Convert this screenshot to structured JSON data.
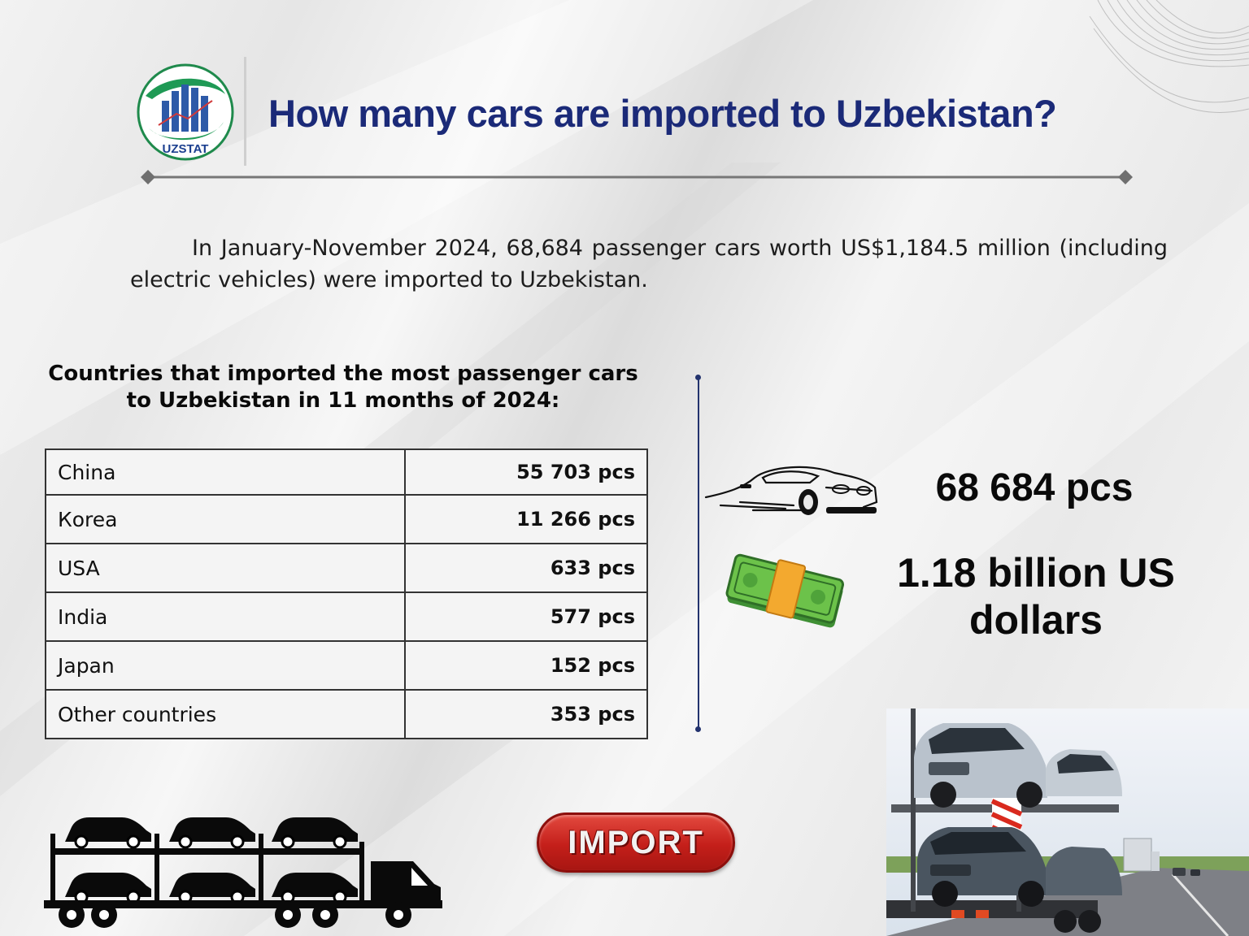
{
  "header": {
    "logo_text": "UZSTAT",
    "title": "How many cars are imported to Uzbekistan?"
  },
  "intro": "In January-November 2024, 68,684 passenger cars worth US$1,184.5 million (including electric vehicles) were imported to Uzbekistan.",
  "table": {
    "heading": "Countries that imported the most passenger cars to Uzbekistan in 11 months of 2024:",
    "rows": [
      {
        "country": "China",
        "value": "55 703 pcs"
      },
      {
        "country": "Кorea",
        "value": "11 266 pcs"
      },
      {
        "country": "USA",
        "value": "633 pcs"
      },
      {
        "country": "India",
        "value": "577 pcs"
      },
      {
        "country": "Japan",
        "value": "152 pcs"
      },
      {
        "country": "Other countries",
        "value": "353 pcs"
      }
    ]
  },
  "stats": {
    "total_cars": "68 684 pcs",
    "total_value": "1.18 billion US dollars"
  },
  "badge": "IMPORT",
  "icons": [
    "uzstat-logo",
    "car-icon",
    "money-stack-icon",
    "car-carrier-truck-icon",
    "car-transporter-photo"
  ],
  "colors": {
    "title": "#1b2a78",
    "divider": "#23336e",
    "badge": "#c41f1a"
  }
}
